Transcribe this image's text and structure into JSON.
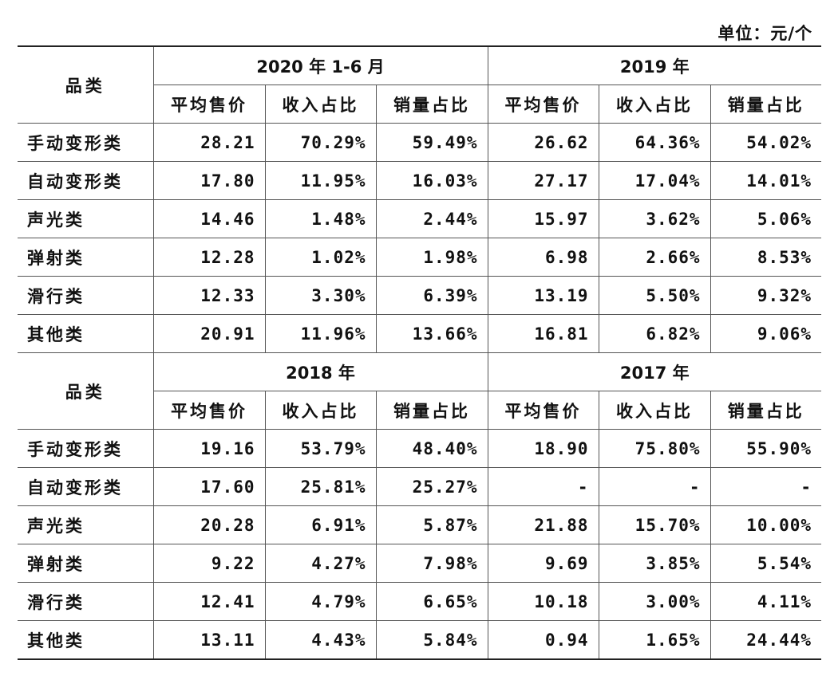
{
  "unit_label": "单位：元/个",
  "category_header": "品类",
  "sub_headers": [
    "平均售价",
    "收入占比",
    "销量占比"
  ],
  "blocks": [
    {
      "periods": [
        "2020 年 1-6 月",
        "2019 年"
      ],
      "rows": [
        {
          "name": "手动变形类",
          "values": [
            "28.21",
            "70.29%",
            "59.49%",
            "26.62",
            "64.36%",
            "54.02%"
          ]
        },
        {
          "name": "自动变形类",
          "values": [
            "17.80",
            "11.95%",
            "16.03%",
            "27.17",
            "17.04%",
            "14.01%"
          ]
        },
        {
          "name": "声光类",
          "values": [
            "14.46",
            "1.48%",
            "2.44%",
            "15.97",
            "3.62%",
            "5.06%"
          ]
        },
        {
          "name": "弹射类",
          "values": [
            "12.28",
            "1.02%",
            "1.98%",
            "6.98",
            "2.66%",
            "8.53%"
          ]
        },
        {
          "name": "滑行类",
          "values": [
            "12.33",
            "3.30%",
            "6.39%",
            "13.19",
            "5.50%",
            "9.32%"
          ]
        },
        {
          "name": "其他类",
          "values": [
            "20.91",
            "11.96%",
            "13.66%",
            "16.81",
            "6.82%",
            "9.06%"
          ]
        }
      ]
    },
    {
      "periods": [
        "2018 年",
        "2017 年"
      ],
      "rows": [
        {
          "name": "手动变形类",
          "values": [
            "19.16",
            "53.79%",
            "48.40%",
            "18.90",
            "75.80%",
            "55.90%"
          ]
        },
        {
          "name": "自动变形类",
          "values": [
            "17.60",
            "25.81%",
            "25.27%",
            "-",
            "-",
            "-"
          ]
        },
        {
          "name": "声光类",
          "values": [
            "20.28",
            "6.91%",
            "5.87%",
            "21.88",
            "15.70%",
            "10.00%"
          ]
        },
        {
          "name": "弹射类",
          "values": [
            "9.22",
            "4.27%",
            "7.98%",
            "9.69",
            "3.85%",
            "5.54%"
          ]
        },
        {
          "name": "滑行类",
          "values": [
            "12.41",
            "4.79%",
            "6.65%",
            "10.18",
            "3.00%",
            "4.11%"
          ]
        },
        {
          "name": "其他类",
          "values": [
            "13.11",
            "4.43%",
            "5.84%",
            "0.94",
            "1.65%",
            "24.44%"
          ]
        }
      ]
    }
  ]
}
